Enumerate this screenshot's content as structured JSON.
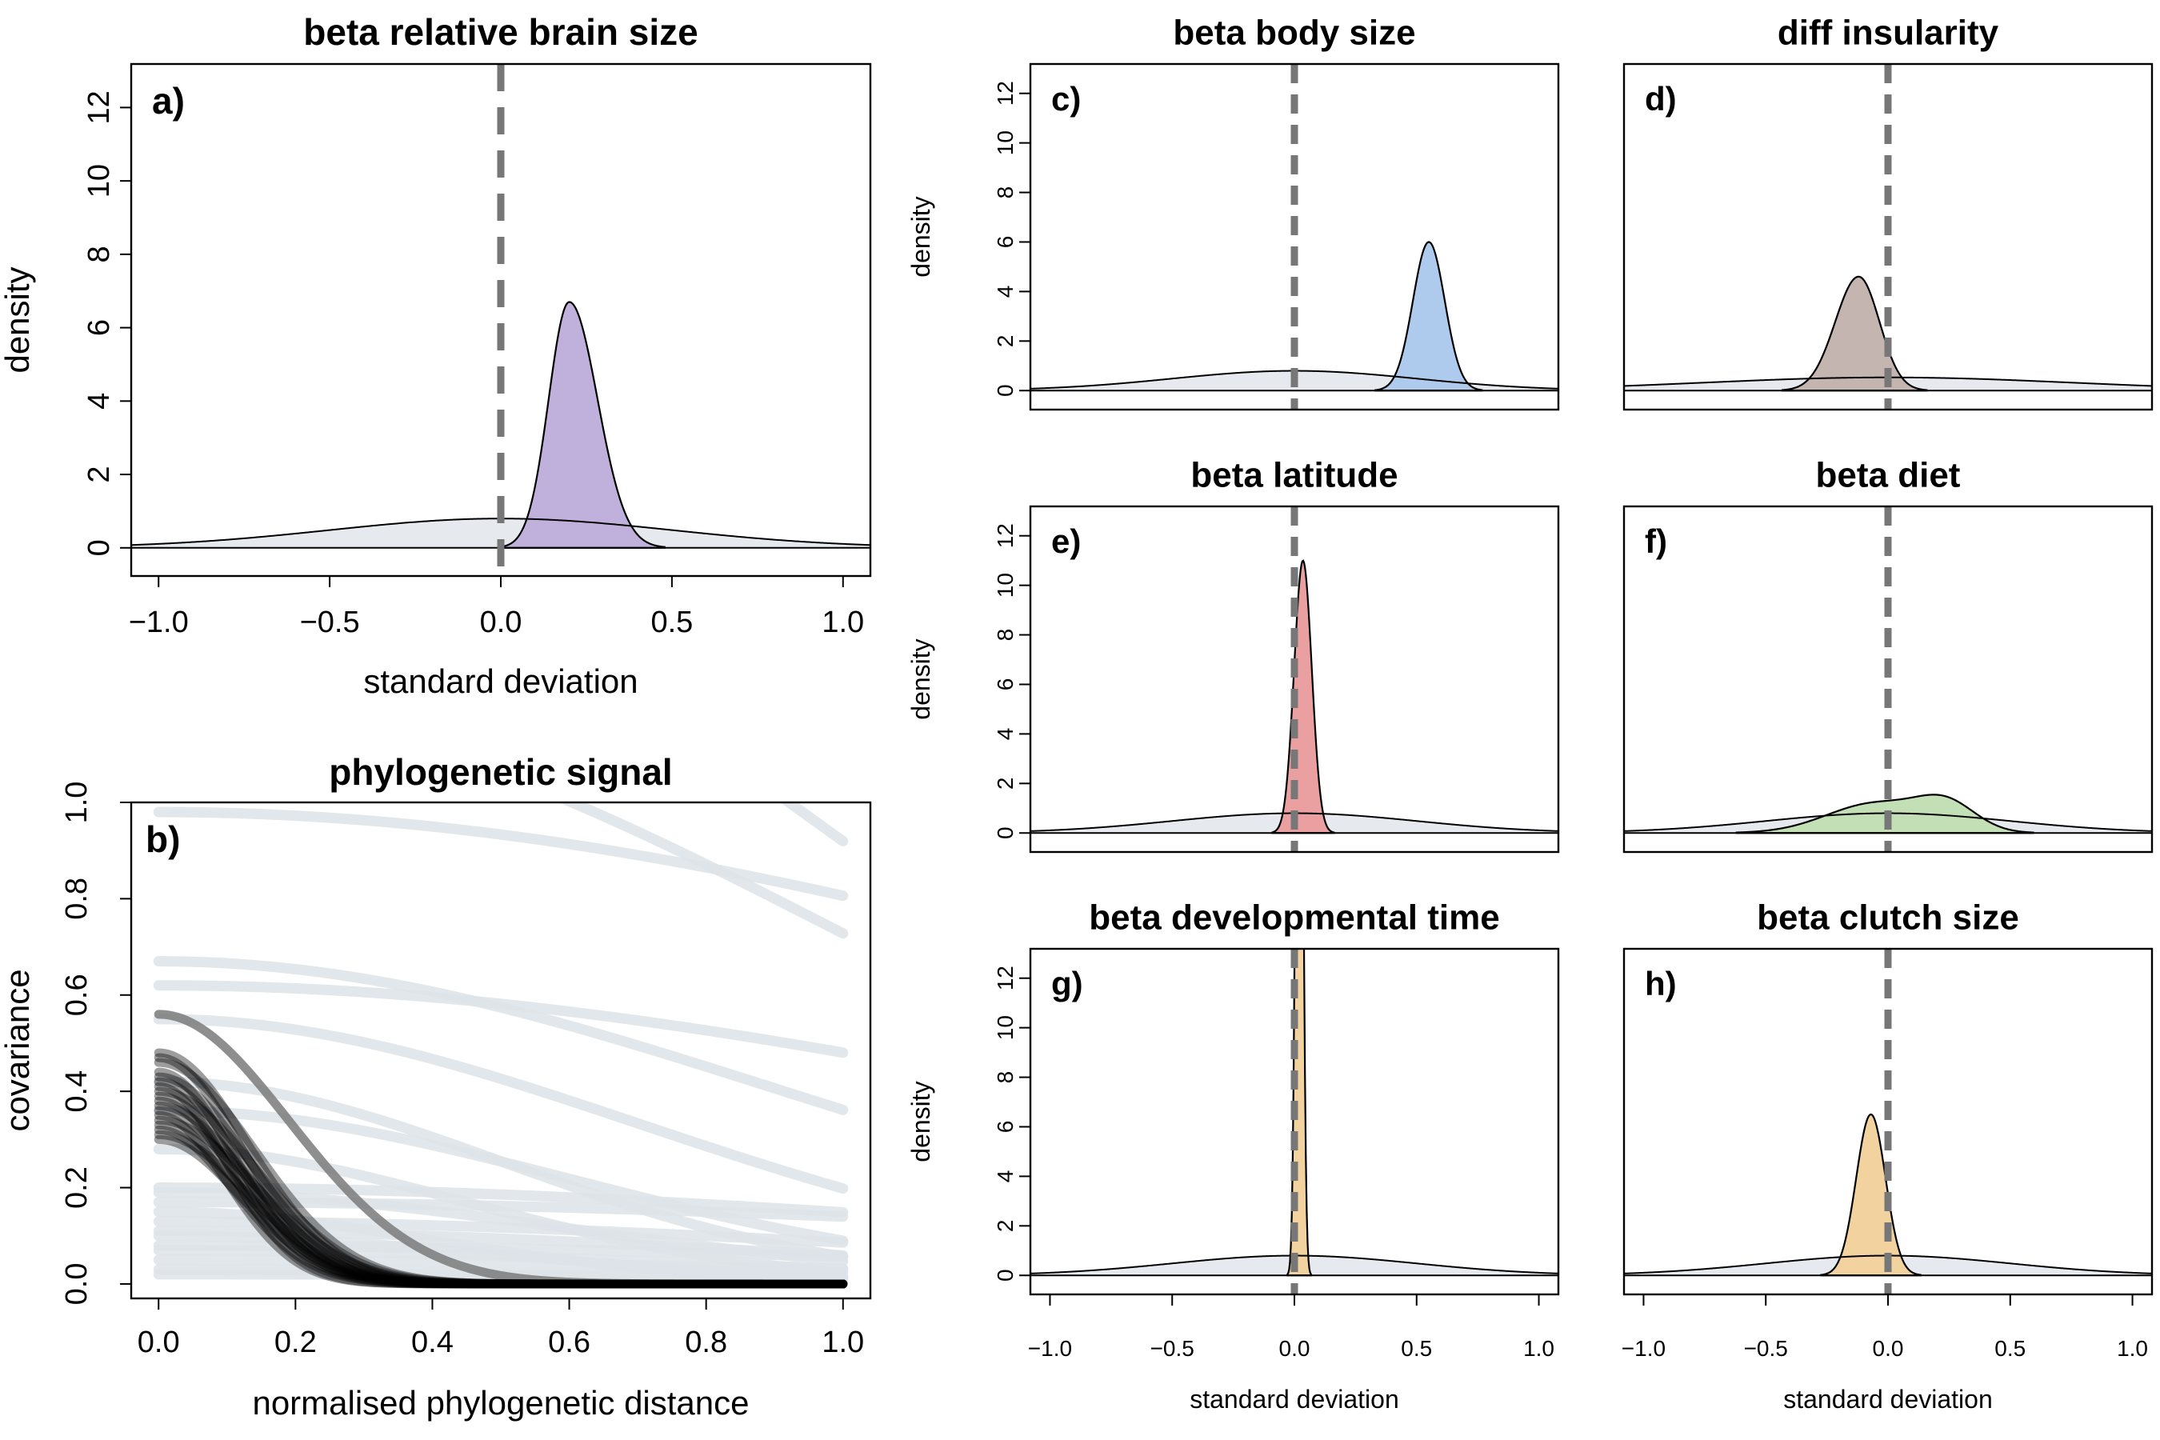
{
  "colors": {
    "prior_fill": "#e6eaee",
    "line": "#000000",
    "zero_line": "#777777",
    "prior_curve": "#dde3e8"
  },
  "chart_data": [
    {
      "id": "a",
      "type": "area",
      "panel_label": "a)",
      "title": "beta relative brain size",
      "xlabel": "standard deviation",
      "ylabel": "density",
      "xlim": [
        -1.08,
        1.08
      ],
      "ylim": [
        0,
        12
      ],
      "xticks": [
        "−1.0",
        "−0.5",
        "0.0",
        "0.5",
        "1.0"
      ],
      "yticks": [
        "0",
        "2",
        "4",
        "6",
        "8",
        "10",
        "12"
      ],
      "series": [
        {
          "role": "prior",
          "mean": 0,
          "sd": 0.5,
          "fill": "#e6eaee"
        },
        {
          "role": "posterior",
          "peak_x": 0.2,
          "peak_y": 6.7,
          "sd": 0.06,
          "skew": -1.5,
          "fill": "#c0b1dc"
        }
      ],
      "zero_line_x": 0
    },
    {
      "id": "c",
      "type": "area",
      "panel_label": "c)",
      "title": "beta body size",
      "xlabel": "",
      "ylabel": "density",
      "xlim": [
        -1.08,
        1.08
      ],
      "ylim": [
        0,
        12
      ],
      "xticks": [],
      "yticks": [
        "0",
        "2",
        "4",
        "6",
        "8",
        "10",
        "12"
      ],
      "series": [
        {
          "role": "prior",
          "mean": 0,
          "sd": 0.5,
          "fill": "#e6eaee"
        },
        {
          "role": "posterior",
          "peak_x": 0.55,
          "peak_y": 6.0,
          "sd": 0.065,
          "skew": 0,
          "fill": "#aecbed"
        }
      ],
      "zero_line_x": 0
    },
    {
      "id": "d",
      "type": "area",
      "panel_label": "d)",
      "title": "diff insularity",
      "xlabel": "",
      "ylabel": "",
      "xlim": [
        -1.08,
        1.08
      ],
      "ylim": [
        0,
        12
      ],
      "xticks": [],
      "yticks": [],
      "series": [
        {
          "role": "prior",
          "mean": 0,
          "sd": 0.75,
          "fill": "#e6eaee"
        },
        {
          "role": "posterior",
          "peak_x": -0.12,
          "peak_y": 4.6,
          "sd": 0.085,
          "skew": 0.5,
          "fill": "#c4b5b0"
        }
      ],
      "zero_line_x": 0
    },
    {
      "id": "e",
      "type": "area",
      "panel_label": "e)",
      "title": "beta latitude",
      "xlabel": "",
      "ylabel": "density",
      "xlim": [
        -1.08,
        1.08
      ],
      "ylim": [
        0,
        12
      ],
      "xticks": [],
      "yticks": [
        "0",
        "2",
        "4",
        "6",
        "8",
        "10",
        "12"
      ],
      "series": [
        {
          "role": "prior",
          "mean": 0,
          "sd": 0.5,
          "fill": "#e6eaee"
        },
        {
          "role": "posterior",
          "peak_x": 0.035,
          "peak_y": 11.0,
          "sd": 0.036,
          "skew": 0,
          "fill": "#eaa0a0"
        }
      ],
      "zero_line_x": 0
    },
    {
      "id": "f",
      "type": "area",
      "panel_label": "f)",
      "title": "beta diet",
      "xlabel": "",
      "ylabel": "",
      "xlim": [
        -1.08,
        1.08
      ],
      "ylim": [
        0,
        12
      ],
      "xticks": [],
      "yticks": [],
      "series": [
        {
          "role": "prior",
          "mean": 0,
          "sd": 0.5,
          "fill": "#e6eaee"
        },
        {
          "role": "posterior",
          "components": [
            {
              "mean": -0.05,
              "sd": 0.2,
              "height": 1.2
            },
            {
              "mean": 0.24,
              "sd": 0.12,
              "height": 1.05
            }
          ],
          "fill": "#c3dfb6"
        }
      ],
      "zero_line_x": 0
    },
    {
      "id": "g",
      "type": "area",
      "panel_label": "g)",
      "title": "beta developmental time",
      "xlabel": "standard deviation",
      "ylabel": "density",
      "xlim": [
        -1.08,
        1.08
      ],
      "ylim": [
        0,
        12
      ],
      "xticks": [
        "−1.0",
        "−0.5",
        "0.0",
        "0.5",
        "1.0"
      ],
      "yticks": [
        "0",
        "2",
        "4",
        "6",
        "8",
        "10",
        "12"
      ],
      "series": [
        {
          "role": "prior",
          "mean": 0,
          "sd": 0.5,
          "fill": "#e6eaee"
        },
        {
          "role": "posterior",
          "peak_x": 0.02,
          "peak_y": 40,
          "sd": 0.013,
          "skew": 0,
          "fill": "#f2d29e"
        }
      ],
      "zero_line_x": 0
    },
    {
      "id": "h",
      "type": "area",
      "panel_label": "h)",
      "title": "beta clutch size",
      "xlabel": "standard deviation",
      "ylabel": "",
      "xlim": [
        -1.08,
        1.08
      ],
      "ylim": [
        0,
        12
      ],
      "xticks": [
        "−1.0",
        "−0.5",
        "0.0",
        "0.5",
        "1.0"
      ],
      "yticks": [],
      "series": [
        {
          "role": "prior",
          "mean": 0,
          "sd": 0.5,
          "fill": "#e6eaee"
        },
        {
          "role": "posterior",
          "peak_x": -0.07,
          "peak_y": 6.5,
          "sd": 0.06,
          "skew": 0,
          "fill": "#f2d29e"
        }
      ],
      "zero_line_x": 0
    },
    {
      "id": "b",
      "type": "line",
      "panel_label": "b)",
      "title": "phylogenetic signal",
      "xlabel": "normalised phylogenetic distance",
      "ylabel": "covariance",
      "xlim": [
        -0.04,
        1.04
      ],
      "ylim": [
        -0.03,
        1.0
      ],
      "xticks": [
        "0.0",
        "0.2",
        "0.4",
        "0.6",
        "0.8",
        "1.0"
      ],
      "yticks": [
        "0.0",
        "0.2",
        "0.4",
        "0.6",
        "0.8",
        "1.0"
      ],
      "prior_curves": [
        {
          "eta": 3.8,
          "rho": 0.8
        },
        {
          "eta": 2.4,
          "rho": 0.9
        },
        {
          "eta": 1.6,
          "rho": 0.95
        },
        {
          "eta": 1.2,
          "rho": 1.0
        },
        {
          "eta": 0.98,
          "rho": 1.6
        },
        {
          "eta": 0.67,
          "rho": 0.9
        },
        {
          "eta": 0.62,
          "rho": 1.4
        },
        {
          "eta": 0.55,
          "rho": 0.7
        },
        {
          "eta": 0.42,
          "rho": 0.5
        },
        {
          "eta": 0.36,
          "rho": 0.6
        },
        {
          "eta": 0.28,
          "rho": 0.45
        },
        {
          "eta": 0.2,
          "rho": 1.3
        },
        {
          "eta": 0.19,
          "rho": 0.6
        },
        {
          "eta": 0.17,
          "rho": 1.6
        },
        {
          "eta": 0.15,
          "rho": 0.4
        },
        {
          "eta": 0.13,
          "rho": 1.1
        },
        {
          "eta": 0.11,
          "rho": 0.9
        },
        {
          "eta": 0.1,
          "rho": 0.5
        },
        {
          "eta": 0.08,
          "rho": 1.2
        },
        {
          "eta": 0.07,
          "rho": 0.8
        },
        {
          "eta": 0.05,
          "rho": 1.0
        },
        {
          "eta": 0.03,
          "rho": 0.7
        },
        {
          "eta": 0.02,
          "rho": 1.5
        }
      ],
      "posterior_curves": [
        {
          "eta": 0.56,
          "rho": 0.19,
          "shade": "#7a7a7a"
        },
        {
          "eta": 0.48,
          "rho": 0.13
        },
        {
          "eta": 0.47,
          "rho": 0.12
        },
        {
          "eta": 0.46,
          "rho": 0.14
        },
        {
          "eta": 0.44,
          "rho": 0.11
        },
        {
          "eta": 0.43,
          "rho": 0.13
        },
        {
          "eta": 0.42,
          "rho": 0.12
        },
        {
          "eta": 0.41,
          "rho": 0.1
        },
        {
          "eta": 0.4,
          "rho": 0.14
        },
        {
          "eta": 0.39,
          "rho": 0.12
        },
        {
          "eta": 0.38,
          "rho": 0.11
        },
        {
          "eta": 0.37,
          "rho": 0.13
        },
        {
          "eta": 0.36,
          "rho": 0.12
        },
        {
          "eta": 0.35,
          "rho": 0.1
        },
        {
          "eta": 0.34,
          "rho": 0.14
        },
        {
          "eta": 0.33,
          "rho": 0.12
        },
        {
          "eta": 0.32,
          "rho": 0.11
        },
        {
          "eta": 0.31,
          "rho": 0.13
        },
        {
          "eta": 0.3,
          "rho": 0.12
        }
      ]
    }
  ]
}
